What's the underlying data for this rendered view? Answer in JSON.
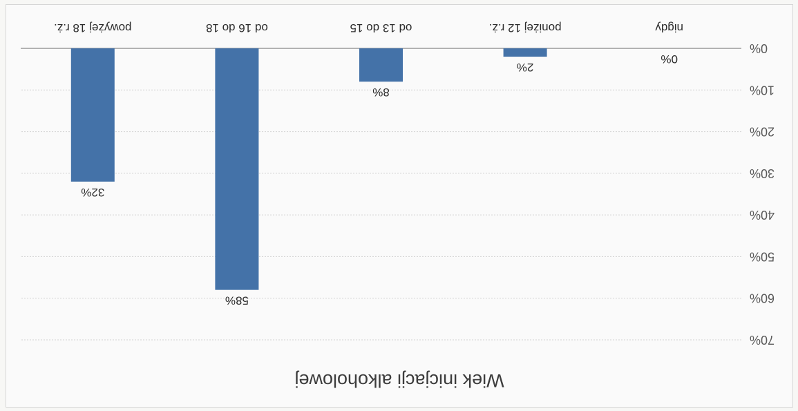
{
  "chart_data": {
    "type": "bar",
    "title": "Wiek inicjacji alkoholowej",
    "categories": [
      "nigdy",
      "poniżej 12 r.ż.",
      "od 13 do 15",
      "od 16 do 18",
      "powyżej 18 r.ż."
    ],
    "values": [
      0,
      2,
      8,
      58,
      32
    ],
    "data_labels": [
      "0%",
      "2%",
      "8%",
      "58%",
      "32%"
    ],
    "ylim": [
      0,
      70
    ],
    "yticks": [
      0,
      10,
      20,
      30,
      40,
      50,
      60,
      70
    ],
    "ytick_labels": [
      "0%",
      "10%",
      "20%",
      "30%",
      "40%",
      "50%",
      "60%",
      "70%"
    ],
    "grid": true,
    "orientation": "rotated 180 degrees",
    "colors": {
      "bar": "#4472a8"
    }
  }
}
